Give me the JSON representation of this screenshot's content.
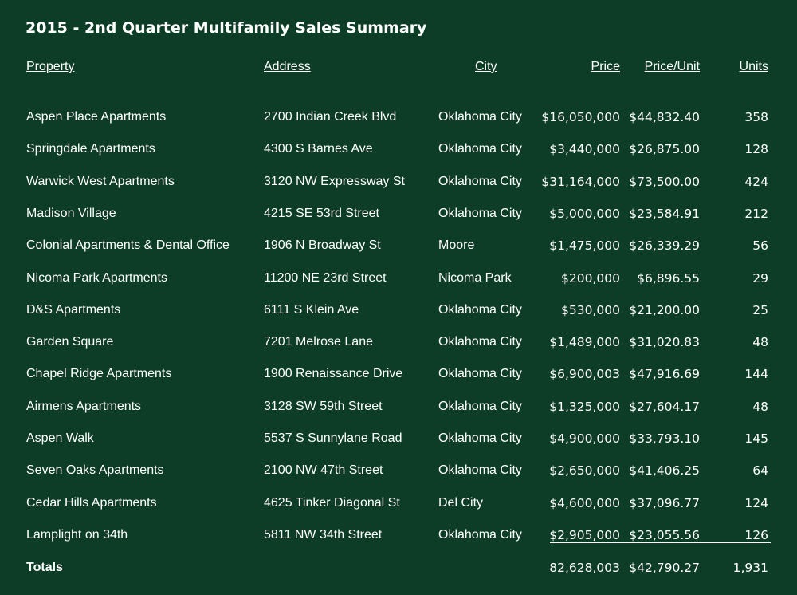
{
  "title": "2015 - 2nd Quarter Multifamily Sales Summary",
  "headers": {
    "property": "Property",
    "address": "Address",
    "city": "City",
    "price": "Price",
    "price_per_unit": "Price/Unit",
    "units": "Units"
  },
  "rows": [
    {
      "property": "Aspen Place Apartments",
      "address": "2700 Indian Creek Blvd",
      "city": "Oklahoma City",
      "price": "$16,050,000",
      "ppu": "$44,832.40",
      "units": "358"
    },
    {
      "property": "Springdale Apartments",
      "address": "4300 S Barnes Ave",
      "city": "Oklahoma City",
      "price": "$3,440,000",
      "ppu": "$26,875.00",
      "units": "128"
    },
    {
      "property": "Warwick West Apartments",
      "address": "3120 NW Expressway St",
      "city": "Oklahoma City",
      "price": "$31,164,000",
      "ppu": "$73,500.00",
      "units": "424"
    },
    {
      "property": "Madison Village",
      "address": "4215 SE 53rd Street",
      "city": "Oklahoma City",
      "price": "$5,000,000",
      "ppu": "$23,584.91",
      "units": "212"
    },
    {
      "property": "Colonial Apartments & Dental Office",
      "address": "1906 N Broadway St",
      "city": "Moore",
      "price": "$1,475,000",
      "ppu": "$26,339.29",
      "units": "56"
    },
    {
      "property": "Nicoma Park Apartments",
      "address": "11200 NE 23rd Street",
      "city": "Nicoma Park",
      "price": "$200,000",
      "ppu": "$6,896.55",
      "units": "29"
    },
    {
      "property": "D&S Apartments",
      "address": "6111 S Klein Ave",
      "city": "Oklahoma City",
      "price": "$530,000",
      "ppu": "$21,200.00",
      "units": "25"
    },
    {
      "property": "Garden Square",
      "address": "7201 Melrose Lane",
      "city": "Oklahoma City",
      "price": "$1,489,000",
      "ppu": "$31,020.83",
      "units": "48"
    },
    {
      "property": "Chapel Ridge Apartments",
      "address": "1900 Renaissance Drive",
      "city": "Oklahoma City",
      "price": "$6,900,003",
      "ppu": "$47,916.69",
      "units": "144"
    },
    {
      "property": "Airmens Apartments",
      "address": "3128 SW 59th Street",
      "city": "Oklahoma City",
      "price": "$1,325,000",
      "ppu": "$27,604.17",
      "units": "48"
    },
    {
      "property": "Aspen Walk",
      "address": "5537 S Sunnylane Road",
      "city": "Oklahoma City",
      "price": "$4,900,000",
      "ppu": "$33,793.10",
      "units": "145"
    },
    {
      "property": "Seven Oaks Apartments",
      "address": "2100 NW 47th Street",
      "city": "Oklahoma City",
      "price": "$2,650,000",
      "ppu": "$41,406.25",
      "units": "64"
    },
    {
      "property": "Cedar Hills Apartments",
      "address": "4625 Tinker Diagonal St",
      "city": "Del City",
      "price": "$4,600,000",
      "ppu": "$37,096.77",
      "units": "124"
    },
    {
      "property": "Lamplight on 34th",
      "address": "5811 NW 34th Street",
      "city": "Oklahoma City",
      "price": "$2,905,000",
      "ppu": "$23,055.56",
      "units": "126"
    }
  ],
  "totals": {
    "label": "Totals",
    "price": "82,628,003",
    "ppu": "$42,790.27",
    "units": "1,931"
  }
}
